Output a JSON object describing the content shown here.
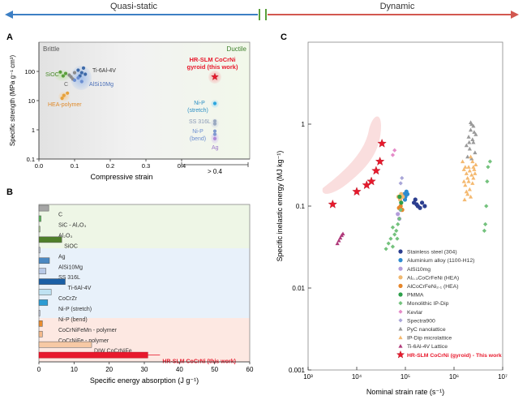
{
  "header": {
    "left": "Quasi-static",
    "right": "Dynamic",
    "left_color": "#3d7fc4",
    "right_color": "#d2574f"
  },
  "chart_data": [
    {
      "panel": "A",
      "type": "scatter",
      "xlabel": "Compressive strain",
      "ylabel": "Specific strength (MPa g⁻¹ cm³)",
      "y_scale": "log",
      "xlim": [
        0,
        0.5
      ],
      "ylim": [
        0.1,
        1000
      ],
      "x_ticks": [
        "0.0",
        "0.1",
        "0.2",
        "0.3",
        "0.4"
      ],
      "y_ticks": [
        "0.1",
        "1",
        "10",
        "100"
      ],
      "x_break_label": "> 0.4",
      "region_labels": [
        "Brittle",
        "Ductile"
      ],
      "groups": [
        {
          "name": "SiOC",
          "color": "#5a9f3a",
          "points": [
            [
              0.06,
              95
            ],
            [
              0.075,
              85
            ],
            [
              0.068,
              70
            ]
          ]
        },
        {
          "name": "C",
          "color": "#8c8c8c",
          "points": [
            [
              0.085,
              75
            ],
            [
              0.095,
              55
            ],
            [
              0.1,
              90
            ],
            [
              0.09,
              65
            ]
          ]
        },
        {
          "name": "Ti-6Al-4V",
          "color": "#3e6aa8",
          "points": [
            [
              0.11,
              110
            ],
            [
              0.12,
              90
            ],
            [
              0.13,
              80
            ],
            [
              0.115,
              70
            ],
            [
              0.125,
              130
            ]
          ]
        },
        {
          "name": "AlSi10Mg",
          "color": "#6b8ed1",
          "points": [
            [
              0.1,
              50
            ],
            [
              0.12,
              45
            ],
            [
              0.11,
              60
            ]
          ]
        },
        {
          "name": "HEA-polymer",
          "color": "#e6a23c",
          "points": [
            [
              0.07,
              15
            ],
            [
              0.08,
              18
            ],
            [
              0.065,
              12
            ]
          ]
        },
        {
          "name": "HR-SLM CoCrNi gyroid (this work)",
          "color": "#e8192c",
          "points": [
            [
              0.45,
              65
            ]
          ]
        },
        {
          "name": "Ni-P (stretch)",
          "color": "#2ba6de",
          "points": [
            [
              0.45,
              8
            ]
          ]
        },
        {
          "name": "SS 316L",
          "color": "#9aa9c0",
          "points": [
            [
              0.45,
              2
            ],
            [
              0.45,
              1.6
            ]
          ]
        },
        {
          "name": "Ni-P (bend)",
          "color": "#7f9ad0",
          "points": [
            [
              0.45,
              0.9
            ],
            [
              0.45,
              0.7
            ]
          ]
        },
        {
          "name": "Ag",
          "color": "#b08ad8",
          "points": [
            [
              0.45,
              0.5
            ]
          ]
        }
      ]
    },
    {
      "panel": "B",
      "type": "bar",
      "orientation": "horizontal",
      "xlabel": "Specific energy absorption (J g⁻¹)",
      "xlim": [
        0,
        60
      ],
      "x_ticks": [
        "0",
        "10",
        "20",
        "30",
        "40",
        "50",
        "60"
      ],
      "categories": [
        "C",
        "SiC - Al₂O₃",
        "Al₂O₃",
        "SiOC",
        "Ag",
        "AlSi10Mg",
        "SS 316L",
        "Ti-6Al-4V",
        "CoCrZr",
        "Ni-P (stretch)",
        "Ni-P (bend)",
        "CoCrNiFeMn - polymer",
        "CoCrNiFe - polymer",
        "DIW CoCrNiFe",
        "HR-SLM CoCrNi (this work)"
      ],
      "values": [
        2.8,
        0.6,
        0.3,
        6.5,
        0.3,
        3.0,
        2.0,
        7.5,
        3.5,
        2.5,
        0.2,
        1.0,
        1.0,
        15.0,
        31.0
      ],
      "colors": [
        "#a6a6a6",
        "#5cb85c",
        "#a9d18e",
        "#4f7f2a",
        "#bcc6d6",
        "#4a88c2",
        "#b7c9e6",
        "#1b5fa5",
        "#bfe2f2",
        "#2b9bd3",
        "#c8d3ea",
        "#e88b2e",
        "#f4b98a",
        "#f7c9a5",
        "#e8192c"
      ],
      "groups": [
        "ceramic",
        "ceramic",
        "ceramic",
        "ceramic",
        "metal",
        "metal",
        "metal",
        "metal",
        "metal",
        "metal",
        "metal",
        "hea",
        "hea",
        "hea",
        "hea"
      ]
    },
    {
      "panel": "C",
      "type": "scatter",
      "xlabel": "Nominal strain rate (s⁻¹)",
      "ylabel": "Specific inelastic energy (MJ kg⁻¹)",
      "x_scale": "log",
      "y_scale": "log",
      "xlim": [
        1000,
        10000000
      ],
      "ylim": [
        0.001,
        10
      ],
      "x_ticks": [
        "10³",
        "10⁴",
        "10⁵",
        "10⁶",
        "10⁷"
      ],
      "y_ticks": [
        "0.001",
        "0.01",
        "0.1",
        "1"
      ],
      "series": [
        {
          "name": "Stainless steel (304)",
          "color": "#2c3e8f",
          "marker": "circle",
          "points": [
            [
              150000,
              0.11
            ],
            [
              160000,
              0.12
            ],
            [
              180000,
              0.1
            ],
            [
              200000,
              0.095
            ],
            [
              220000,
              0.11
            ],
            [
              250000,
              0.1
            ],
            [
              170000,
              0.105
            ]
          ]
        },
        {
          "name": "Aluminium alloy (1100-H12)",
          "color": "#2e8bcf",
          "marker": "circle",
          "points": [
            [
              95000,
              0.14
            ],
            [
              100000,
              0.13
            ],
            [
              105000,
              0.15
            ],
            [
              110000,
              0.14
            ],
            [
              98000,
              0.12
            ]
          ]
        },
        {
          "name": "AlSi10mg",
          "color": "#b39ddb",
          "marker": "circle",
          "points": [
            [
              70000,
              0.08
            ],
            [
              75000,
              0.07
            ],
            [
              80000,
              0.09
            ]
          ]
        },
        {
          "name": "Al₀.₃CoCrFeNi (HEA)",
          "color": "#f0b870",
          "marker": "circle",
          "points": [
            [
              72000,
              0.13
            ],
            [
              78000,
              0.12
            ],
            [
              82000,
              0.14
            ],
            [
              88000,
              0.13
            ]
          ]
        },
        {
          "name": "AlCoCrFeNi₂.₁ (HEA)",
          "color": "#e6862a",
          "marker": "circle",
          "points": [
            [
              74000,
              0.095
            ],
            [
              80000,
              0.1
            ],
            [
              86000,
              0.09
            ]
          ]
        },
        {
          "name": "PMMA",
          "color": "#2d9f4a",
          "marker": "circle",
          "points": [
            [
              76000,
              0.13
            ],
            [
              82000,
              0.11
            ]
          ]
        },
        {
          "name": "Monolithic IP-Dip",
          "color": "#74c27d",
          "marker": "diamond",
          "points": [
            [
              40000,
              0.03
            ],
            [
              45000,
              0.035
            ],
            [
              50000,
              0.04
            ],
            [
              55000,
              0.032
            ],
            [
              60000,
              0.045
            ],
            [
              65000,
              0.05
            ],
            [
              70000,
              0.06
            ],
            [
              75000,
              0.07
            ],
            [
              55000,
              0.055
            ],
            [
              68000,
              0.04
            ],
            [
              80000,
              0.09
            ]
          ]
        },
        {
          "name": "Kevlar",
          "color": "#e58bc8",
          "marker": "diamond",
          "points": [
            [
              60000,
              0.48
            ],
            [
              55000,
              0.42
            ]
          ]
        },
        {
          "name": "Spectra900",
          "color": "#a9a6d8",
          "marker": "diamond",
          "points": [
            [
              85000,
              0.22
            ],
            [
              80000,
              0.19
            ]
          ]
        },
        {
          "name": "PyC nanolattice",
          "color": "#9a9a9a",
          "marker": "triangle",
          "points": [
            [
              2300000,
              1.0
            ],
            [
              2500000,
              0.95
            ],
            [
              2200000,
              0.85
            ],
            [
              2600000,
              0.8
            ],
            [
              2000000,
              0.7
            ],
            [
              2400000,
              0.65
            ],
            [
              1800000,
              0.55
            ],
            [
              2100000,
              0.5
            ],
            [
              2700000,
              0.45
            ],
            [
              1900000,
              0.4
            ],
            [
              2300000,
              0.38
            ],
            [
              2500000,
              0.6
            ],
            [
              2800000,
              0.75
            ],
            [
              2200000,
              1.05
            ],
            [
              2050000,
              0.6
            ]
          ]
        },
        {
          "name": "IP-Dip microlattice",
          "color": "#f4b970",
          "marker": "triangle",
          "points": [
            [
              1500000,
              0.35
            ],
            [
              1700000,
              0.3
            ],
            [
              1800000,
              0.25
            ],
            [
              1600000,
              0.2
            ],
            [
              1900000,
              0.22
            ],
            [
              2000000,
              0.3
            ],
            [
              2100000,
              0.27
            ],
            [
              2200000,
              0.4
            ],
            [
              2400000,
              0.35
            ],
            [
              2500000,
              0.3
            ],
            [
              2300000,
              0.24
            ],
            [
              1700000,
              0.18
            ],
            [
              1800000,
              0.15
            ],
            [
              2000000,
              0.2
            ],
            [
              2600000,
              0.28
            ],
            [
              2800000,
              0.32
            ],
            [
              2100000,
              0.16
            ],
            [
              1900000,
              0.14
            ],
            [
              2400000,
              0.19
            ],
            [
              2200000,
              0.13
            ],
            [
              2700000,
              0.25
            ],
            [
              2500000,
              0.22
            ],
            [
              1600000,
              0.28
            ],
            [
              1650000,
              0.12
            ]
          ]
        },
        {
          "name": "Monolithic IP-Dip (dynamic)",
          "color": "#74c27d",
          "marker": "diamond",
          "points": [
            [
              5000000,
              0.3
            ],
            [
              5500000,
              0.35
            ],
            [
              4800000,
              0.2
            ],
            [
              4600000,
              0.1
            ],
            [
              4400000,
              0.06
            ],
            [
              4200000,
              0.05
            ]
          ]
        },
        {
          "name": "Ti-6Al-4V Lattice",
          "color": "#b03a7b",
          "marker": "triangle",
          "points": [
            [
              4000,
              0.035
            ],
            [
              4300,
              0.038
            ],
            [
              4600,
              0.041
            ],
            [
              4900,
              0.044
            ],
            [
              5200,
              0.046
            ]
          ]
        },
        {
          "name": "HR-SLM CoCrNi (gyroid) - This work",
          "color": "#e8192c",
          "marker": "star",
          "points": [
            [
              3200,
              0.105
            ],
            [
              10000,
              0.15
            ],
            [
              16000,
              0.18
            ],
            [
              20000,
              0.2
            ],
            [
              25000,
              0.27
            ],
            [
              30000,
              0.35
            ],
            [
              33000,
              0.58
            ]
          ]
        }
      ]
    }
  ]
}
